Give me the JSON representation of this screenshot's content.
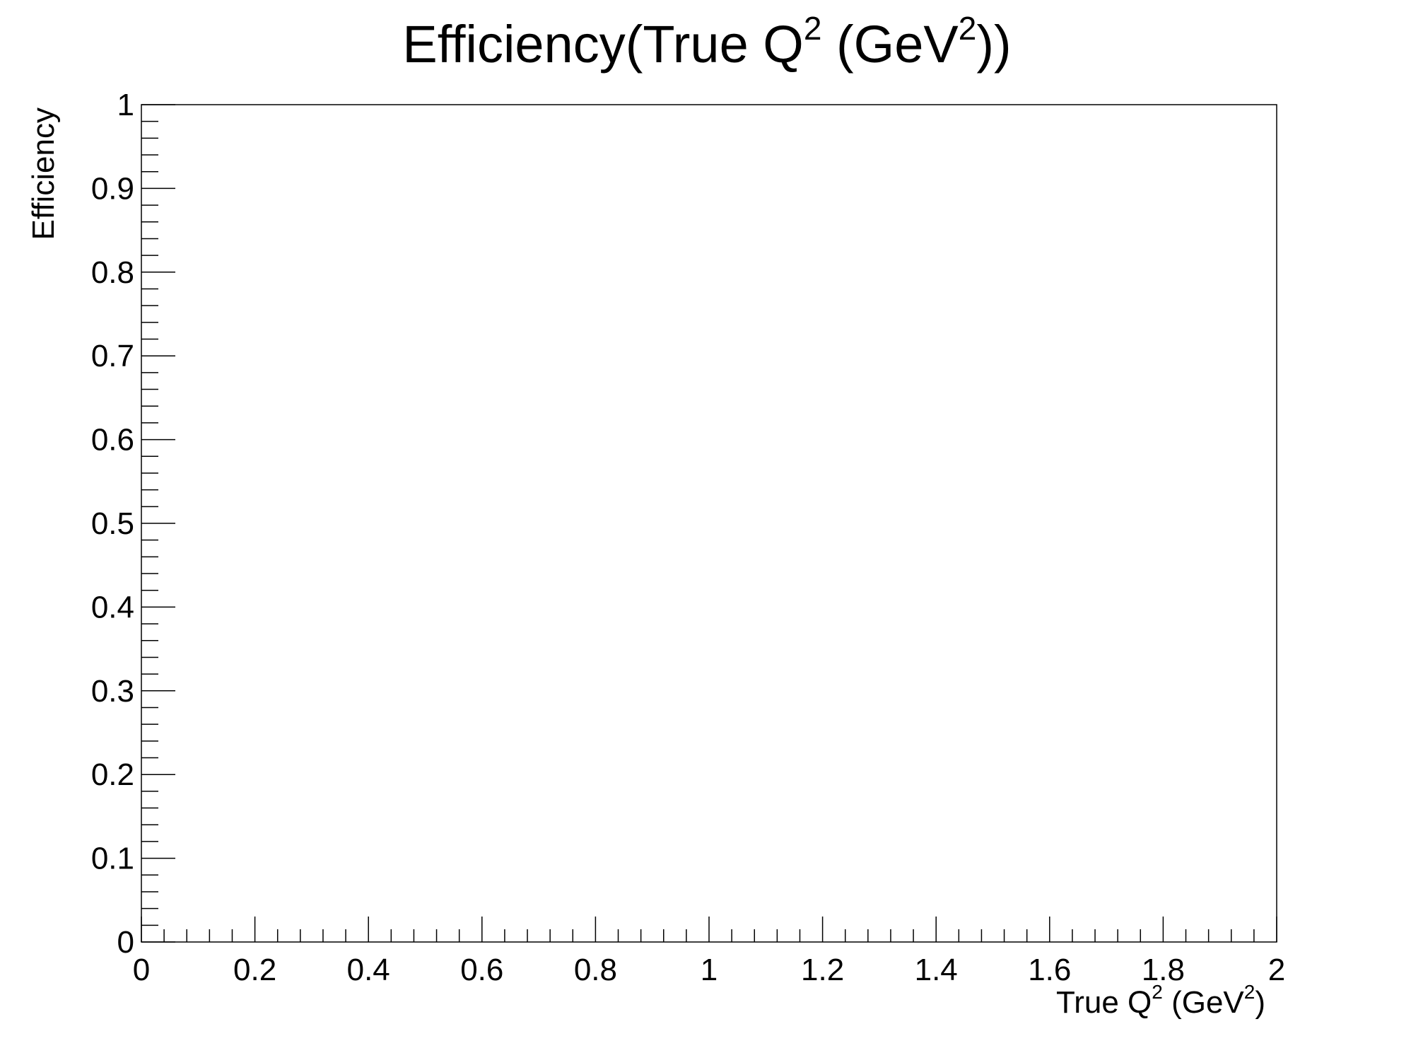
{
  "chart_data": {
    "type": "line",
    "title": {
      "text": "Efficiency(True Q",
      "sup1": "2",
      "mid": " (GeV",
      "sup2": "2",
      "end": "))"
    },
    "xlabel": {
      "text": "True Q",
      "sup1": "2",
      "mid": " (GeV",
      "sup2": "2",
      "end": ")"
    },
    "ylabel": "Efficiency",
    "xlim": [
      0,
      2
    ],
    "ylim": [
      0,
      1
    ],
    "x_ticks": [
      "0",
      "0.2",
      "0.4",
      "0.6",
      "0.8",
      "1",
      "1.2",
      "1.4",
      "1.6",
      "1.8",
      "2"
    ],
    "y_ticks": [
      "0",
      "0.1",
      "0.2",
      "0.3",
      "0.4",
      "0.5",
      "0.6",
      "0.7",
      "0.8",
      "0.9",
      "1"
    ],
    "series": [],
    "grid": false,
    "legend": "none"
  }
}
